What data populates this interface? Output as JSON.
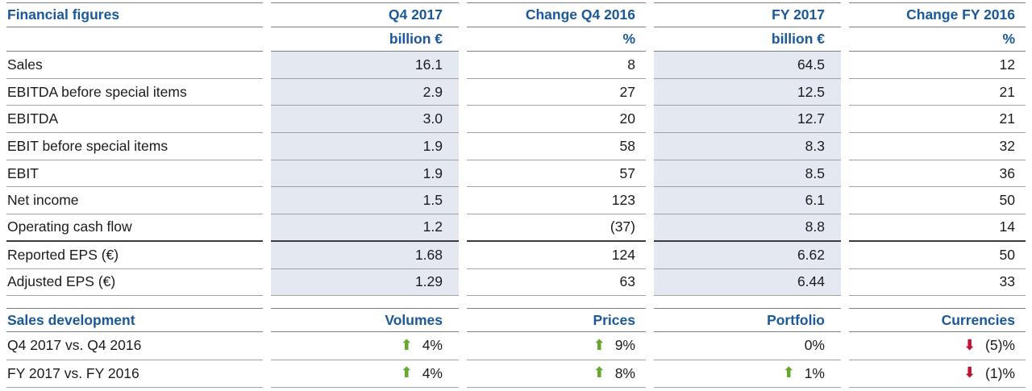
{
  "colors": {
    "accent_blue": "#1A5899",
    "row_shade": "#E4E8F1",
    "positive_green": "#66A82D",
    "negative_red": "#BE1333",
    "text": "#1B1B1B"
  },
  "financial_table": {
    "title": "Financial figures",
    "columns": [
      "Q4 2017",
      "Change Q4 2016",
      "FY 2017",
      "Change FY 2016"
    ],
    "units": [
      "billion €",
      "%",
      "billion €",
      "%"
    ],
    "rows": [
      {
        "label": "Sales",
        "values": [
          "16.1",
          "8",
          "64.5",
          "12"
        ]
      },
      {
        "label": "EBITDA before special items",
        "values": [
          "2.9",
          "27",
          "12.5",
          "21"
        ]
      },
      {
        "label": "EBITDA",
        "values": [
          "3.0",
          "20",
          "12.7",
          "21"
        ]
      },
      {
        "label": "EBIT before special items",
        "values": [
          "1.9",
          "58",
          "8.3",
          "32"
        ]
      },
      {
        "label": "EBIT",
        "values": [
          "1.9",
          "57",
          "8.5",
          "36"
        ]
      },
      {
        "label": "Net income",
        "values": [
          "1.5",
          "123",
          "6.1",
          "50"
        ]
      },
      {
        "label": "Operating cash flow",
        "values": [
          "1.2",
          "(37)",
          "8.8",
          "14"
        ]
      },
      {
        "label": "Reported EPS (€)",
        "values": [
          "1.68",
          "124",
          "6.62",
          "50"
        ]
      },
      {
        "label": "Adjusted EPS (€)",
        "values": [
          "1.29",
          "63",
          "6.44",
          "33"
        ]
      }
    ]
  },
  "sales_development": {
    "title": "Sales development",
    "columns": [
      "Volumes",
      "Prices",
      "Portfolio",
      "Currencies"
    ],
    "rows": [
      {
        "label": "Q4 2017 vs. Q4 2016",
        "cells": [
          {
            "direction": "up",
            "value": "4%"
          },
          {
            "direction": "up",
            "value": "9%"
          },
          {
            "direction": "none",
            "value": "0%"
          },
          {
            "direction": "down",
            "value": "(5)%"
          }
        ]
      },
      {
        "label": "FY 2017 vs. FY 2016",
        "cells": [
          {
            "direction": "up",
            "value": "4%"
          },
          {
            "direction": "up",
            "value": "8%"
          },
          {
            "direction": "up",
            "value": "1%"
          },
          {
            "direction": "down",
            "value": "(1)%"
          }
        ]
      }
    ]
  }
}
